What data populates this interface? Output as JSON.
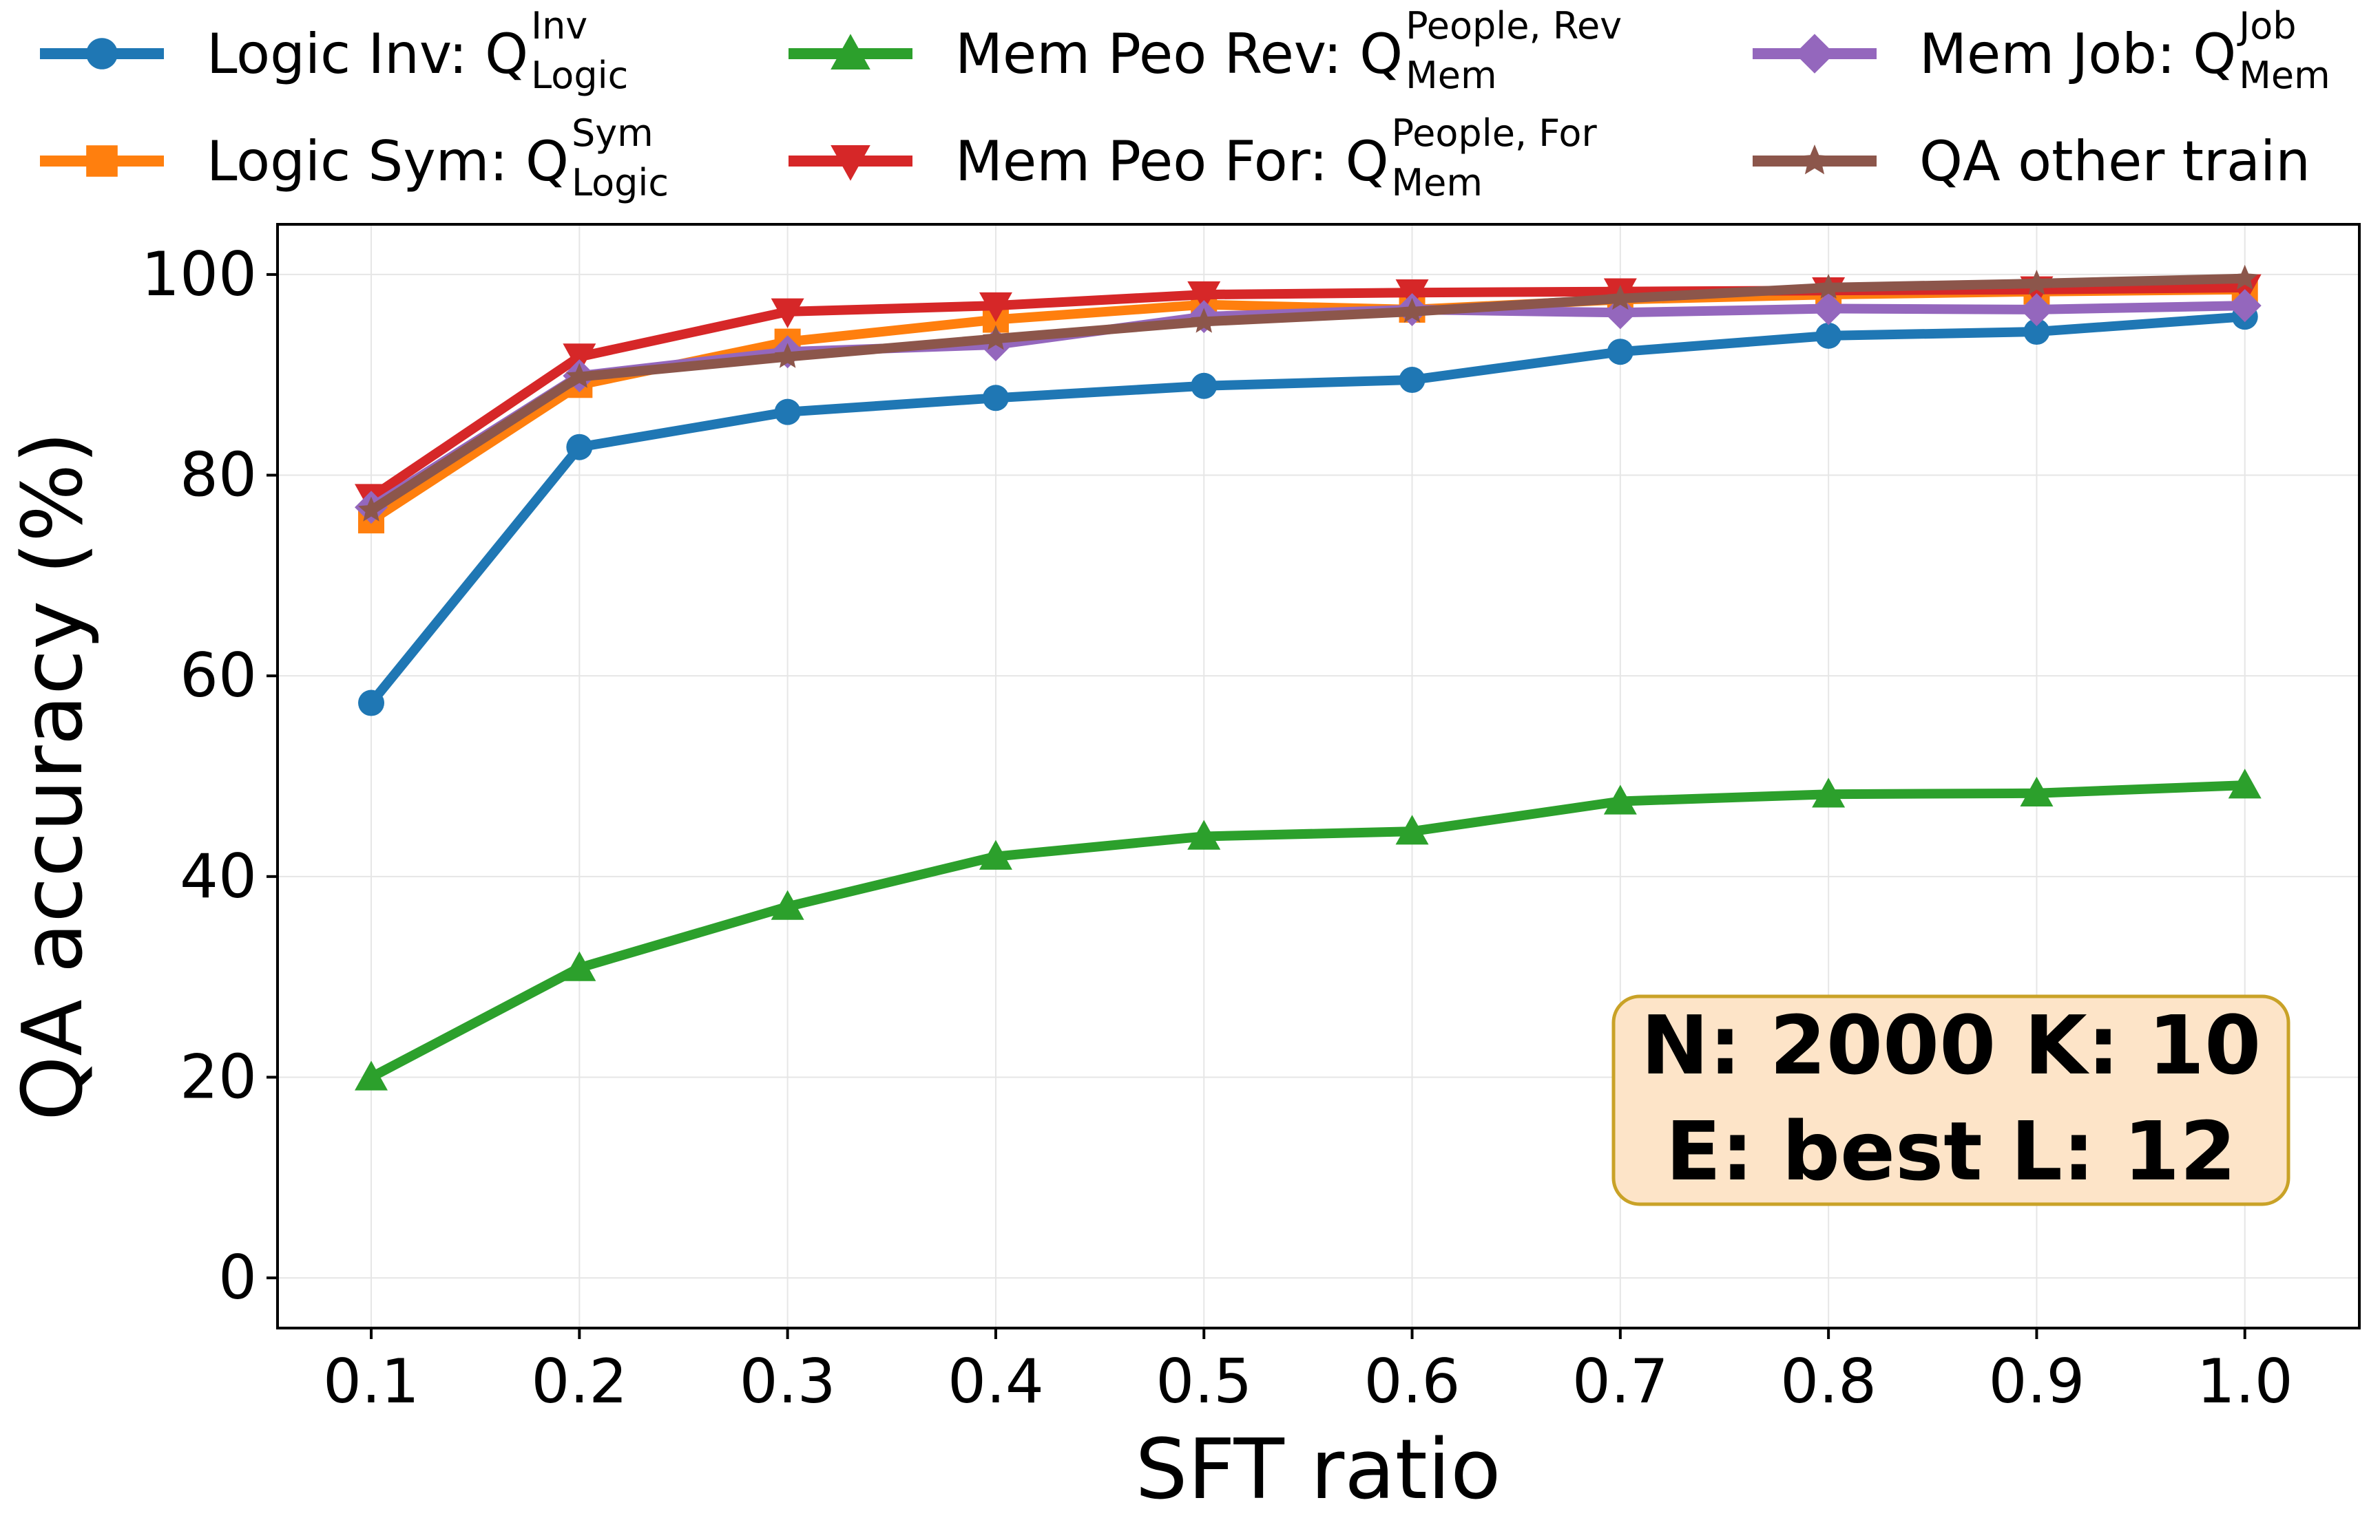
{
  "chart_data": {
    "type": "line",
    "title": "",
    "xlabel": "SFT ratio",
    "ylabel": "QA accuracy (%)",
    "x": [
      0.1,
      0.2,
      0.3,
      0.4,
      0.5,
      0.6,
      0.7,
      0.8,
      0.9,
      1.0
    ],
    "x_tick_labels": [
      "0.1",
      "0.2",
      "0.3",
      "0.4",
      "0.5",
      "0.6",
      "0.7",
      "0.8",
      "0.9",
      "1.0"
    ],
    "y_ticks": [
      0,
      20,
      40,
      60,
      80,
      100
    ],
    "y_tick_labels": [
      "0",
      "20",
      "40",
      "60",
      "80",
      "100"
    ],
    "xlim": [
      0.055,
      1.055
    ],
    "ylim": [
      -5,
      105
    ],
    "grid": true,
    "legend_position": "top",
    "series": [
      {
        "name": "Logic Inv: Q",
        "sup": "Inv",
        "sub": "Logic",
        "color": "#1f77b4",
        "marker": "circle",
        "values": [
          57.3,
          82.8,
          86.3,
          87.7,
          88.9,
          89.5,
          92.3,
          93.9,
          94.3,
          95.8
        ]
      },
      {
        "name": "Logic Sym: Q",
        "sup": "Sym",
        "sub": "Logic",
        "color": "#ff7f0e",
        "marker": "square",
        "values": [
          75.5,
          89.0,
          93.3,
          95.5,
          97.0,
          96.5,
          97.5,
          98.0,
          98.3,
          98.5
        ]
      },
      {
        "name": "Mem Peo Rev: Q",
        "sup": "People, Rev",
        "sub": "Mem",
        "color": "#2ca02c",
        "marker": "triangle-up",
        "values": [
          20.0,
          30.9,
          37.0,
          42.0,
          44.0,
          44.5,
          47.5,
          48.2,
          48.3,
          49.1
        ]
      },
      {
        "name": "Mem Peo For: Q",
        "sup": "People, For",
        "sub": "Mem",
        "color": "#d62728",
        "marker": "triangle-down",
        "values": [
          77.8,
          91.8,
          96.3,
          96.9,
          98.0,
          98.2,
          98.3,
          98.4,
          98.5,
          98.7
        ]
      },
      {
        "name": "Mem Job: Q",
        "sup": "Job",
        "sub": "Mem",
        "color": "#9467bd",
        "marker": "diamond",
        "values": [
          76.8,
          89.9,
          92.3,
          93.0,
          95.8,
          96.5,
          96.2,
          96.6,
          96.5,
          96.9
        ]
      },
      {
        "name": "QA other train",
        "sup": "",
        "sub": "",
        "color": "#8c564b",
        "marker": "star",
        "values": [
          76.5,
          89.8,
          91.8,
          93.6,
          95.3,
          96.3,
          97.6,
          98.7,
          99.1,
          99.6
        ]
      }
    ],
    "annotation": {
      "lines": [
        "N: 2000 K: 10",
        "E: best L: 12"
      ],
      "background": "#fde4c8",
      "border": "#c9a227"
    }
  }
}
